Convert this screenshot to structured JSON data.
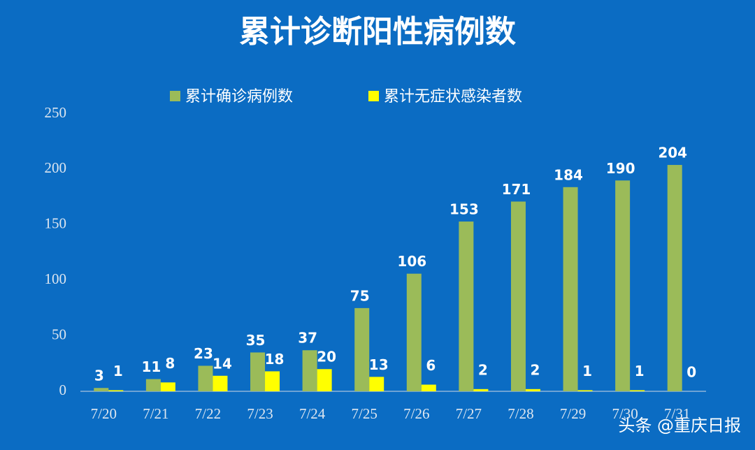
{
  "chart_data": {
    "type": "bar",
    "title": "累计诊断阳性病例数",
    "categories": [
      "7/20",
      "7/21",
      "7/22",
      "7/23",
      "7/24",
      "7/25",
      "7/26",
      "7/27",
      "7/28",
      "7/29",
      "7/30",
      "7/31"
    ],
    "series": [
      {
        "name": "累计确诊病例数",
        "color": "#9bbb59",
        "values": [
          3,
          11,
          23,
          35,
          37,
          75,
          106,
          153,
          171,
          184,
          190,
          204
        ]
      },
      {
        "name": "累计无症状感染者数",
        "color": "#ffff00",
        "values": [
          1,
          8,
          14,
          18,
          20,
          13,
          6,
          2,
          2,
          1,
          1,
          0
        ]
      }
    ],
    "ylim": [
      0,
      250
    ],
    "yticks": [
      0,
      50,
      100,
      150,
      200,
      250
    ],
    "legend": "top",
    "watermark": "头条 @重庆日报"
  }
}
